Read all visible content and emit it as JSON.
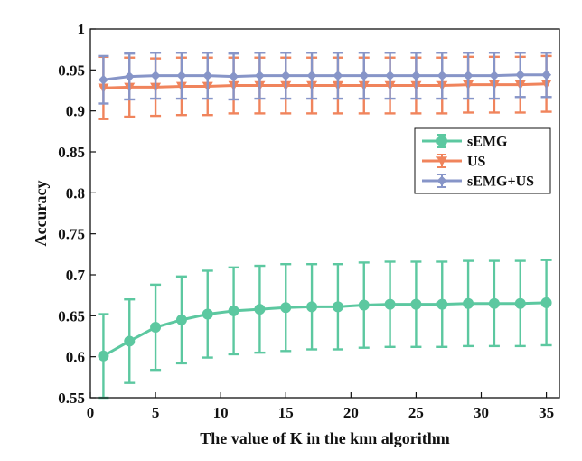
{
  "chart_data": {
    "type": "line",
    "xlabel": "The value of K in the knn algorithm",
    "ylabel": "Accuracy",
    "xlim": [
      0,
      36
    ],
    "ylim": [
      0.55,
      1.0
    ],
    "xticks": [
      0,
      5,
      10,
      15,
      20,
      25,
      30,
      35
    ],
    "yticks": [
      0.55,
      0.6,
      0.65,
      0.7,
      0.75,
      0.8,
      0.85,
      0.9,
      0.95,
      1.0
    ],
    "ytick_labels": [
      "0.55",
      "0.6",
      "0.65",
      "0.7",
      "0.75",
      "0.8",
      "0.85",
      "0.9",
      "0.95",
      "1"
    ],
    "legend_position": "upper-right",
    "grid": false,
    "x": [
      1,
      3,
      5,
      7,
      9,
      11,
      13,
      15,
      17,
      19,
      21,
      23,
      25,
      27,
      29,
      31,
      33,
      35
    ],
    "series": [
      {
        "name": "sEMG",
        "color": "#5cc8a0",
        "marker": "circle",
        "values": [
          0.601,
          0.619,
          0.636,
          0.645,
          0.652,
          0.656,
          0.658,
          0.66,
          0.661,
          0.661,
          0.663,
          0.664,
          0.664,
          0.664,
          0.665,
          0.665,
          0.665,
          0.666
        ],
        "errors": [
          0.051,
          0.051,
          0.052,
          0.053,
          0.053,
          0.053,
          0.053,
          0.053,
          0.052,
          0.052,
          0.052,
          0.052,
          0.052,
          0.052,
          0.052,
          0.052,
          0.052,
          0.052
        ]
      },
      {
        "name": "US",
        "color": "#f0845c",
        "marker": "triangle-down",
        "values": [
          0.928,
          0.929,
          0.929,
          0.93,
          0.93,
          0.931,
          0.931,
          0.931,
          0.931,
          0.931,
          0.931,
          0.931,
          0.931,
          0.931,
          0.932,
          0.932,
          0.932,
          0.933
        ],
        "errors": [
          0.038,
          0.036,
          0.035,
          0.035,
          0.035,
          0.034,
          0.034,
          0.034,
          0.034,
          0.034,
          0.034,
          0.034,
          0.034,
          0.034,
          0.034,
          0.034,
          0.034,
          0.034
        ]
      },
      {
        "name": "sEMG+US",
        "color": "#8795c8",
        "marker": "diamond",
        "values": [
          0.938,
          0.942,
          0.943,
          0.943,
          0.943,
          0.942,
          0.943,
          0.943,
          0.943,
          0.943,
          0.943,
          0.943,
          0.943,
          0.943,
          0.943,
          0.943,
          0.944,
          0.944
        ],
        "errors": [
          0.029,
          0.028,
          0.028,
          0.028,
          0.028,
          0.028,
          0.028,
          0.028,
          0.028,
          0.028,
          0.028,
          0.028,
          0.028,
          0.028,
          0.028,
          0.028,
          0.027,
          0.027
        ]
      }
    ]
  }
}
